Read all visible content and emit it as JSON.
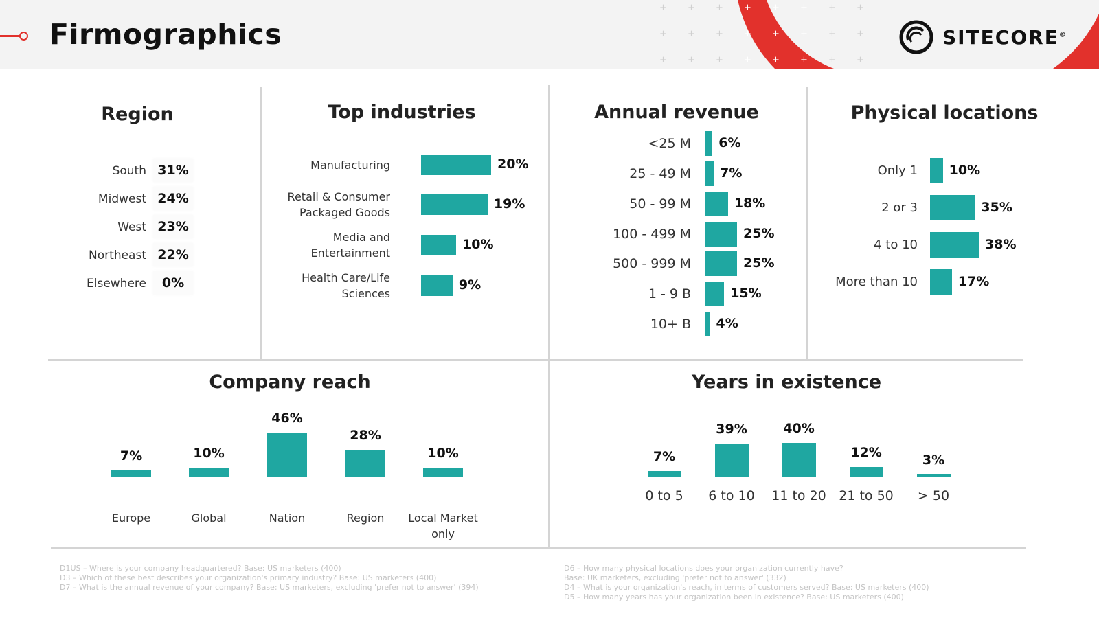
{
  "header": {
    "title": "Firmographics"
  },
  "logo": {
    "name": "SITECORE"
  },
  "colors": {
    "accent": "#e2312c",
    "bar": "#1fa7a1"
  },
  "region": {
    "title": "Region",
    "items": [
      {
        "label": "South",
        "value": "31%"
      },
      {
        "label": "Midwest",
        "value": "24%"
      },
      {
        "label": "West",
        "value": "23%"
      },
      {
        "label": "Northeast",
        "value": "22%"
      },
      {
        "label": "Elsewhere",
        "value": "0%"
      }
    ]
  },
  "chart_data": [
    {
      "id": "industries",
      "type": "bar",
      "orientation": "horizontal",
      "title": "Top industries",
      "categories": [
        "Manufacturing",
        "Retail & Consumer\nPackaged Goods",
        "Media and\nEntertainment",
        "Health Care/Life\nSciences"
      ],
      "values": [
        20,
        19,
        10,
        9
      ],
      "labels": [
        "20%",
        "19%",
        "10%",
        "9%"
      ],
      "unit": "%"
    },
    {
      "id": "revenue",
      "type": "bar",
      "orientation": "horizontal",
      "title": "Annual revenue",
      "categories": [
        "<25 M",
        "25 - 49 M",
        "50 - 99 M",
        "100 - 499 M",
        "500 - 999 M",
        "1 - 9 B",
        "10+ B"
      ],
      "values": [
        6,
        7,
        18,
        25,
        25,
        15,
        4
      ],
      "labels": [
        "6%",
        "7%",
        "18%",
        "25%",
        "25%",
        "15%",
        "4%"
      ],
      "unit": "%"
    },
    {
      "id": "locations",
      "type": "bar",
      "orientation": "horizontal",
      "title": "Physical locations",
      "categories": [
        "Only 1",
        "2 or 3",
        "4 to 10",
        "More than 10"
      ],
      "values": [
        10,
        35,
        38,
        17
      ],
      "labels": [
        "10%",
        "35%",
        "38%",
        "17%"
      ],
      "unit": "%"
    },
    {
      "id": "reach",
      "type": "bar",
      "orientation": "vertical",
      "title": "Company reach",
      "categories": [
        "Europe",
        "Global",
        "Nation",
        "Region",
        "Local Market\nonly"
      ],
      "values": [
        7,
        10,
        46,
        28,
        10
      ],
      "labels": [
        "7%",
        "10%",
        "46%",
        "28%",
        "10%"
      ],
      "unit": "%"
    },
    {
      "id": "years",
      "type": "bar",
      "orientation": "vertical",
      "title": "Years in existence",
      "categories": [
        "0 to 5",
        "6 to 10",
        "11 to 20",
        "21 to 50",
        "> 50"
      ],
      "values": [
        7,
        39,
        40,
        12,
        3
      ],
      "labels": [
        "7%",
        "39%",
        "40%",
        "12%",
        "3%"
      ],
      "unit": "%"
    }
  ],
  "footnotes": {
    "left": [
      "D1US – Where is your company headquartered? Base: US marketers (400)",
      "D3 – Which of these best describes your organization's primary industry? Base: US marketers (400)",
      "D7 – What is the annual revenue of your company? Base: US marketers, excluding 'prefer not to answer' (394)"
    ],
    "right": [
      "D6 – How many physical locations does your organization currently have?",
      "Base: UK marketers, excluding 'prefer not to answer' (332)",
      "D4 – What is your organization's reach, in terms of customers served? Base: US marketers (400)",
      "D5 – How many years has your organization been in existence? Base: US marketers (400)"
    ]
  }
}
